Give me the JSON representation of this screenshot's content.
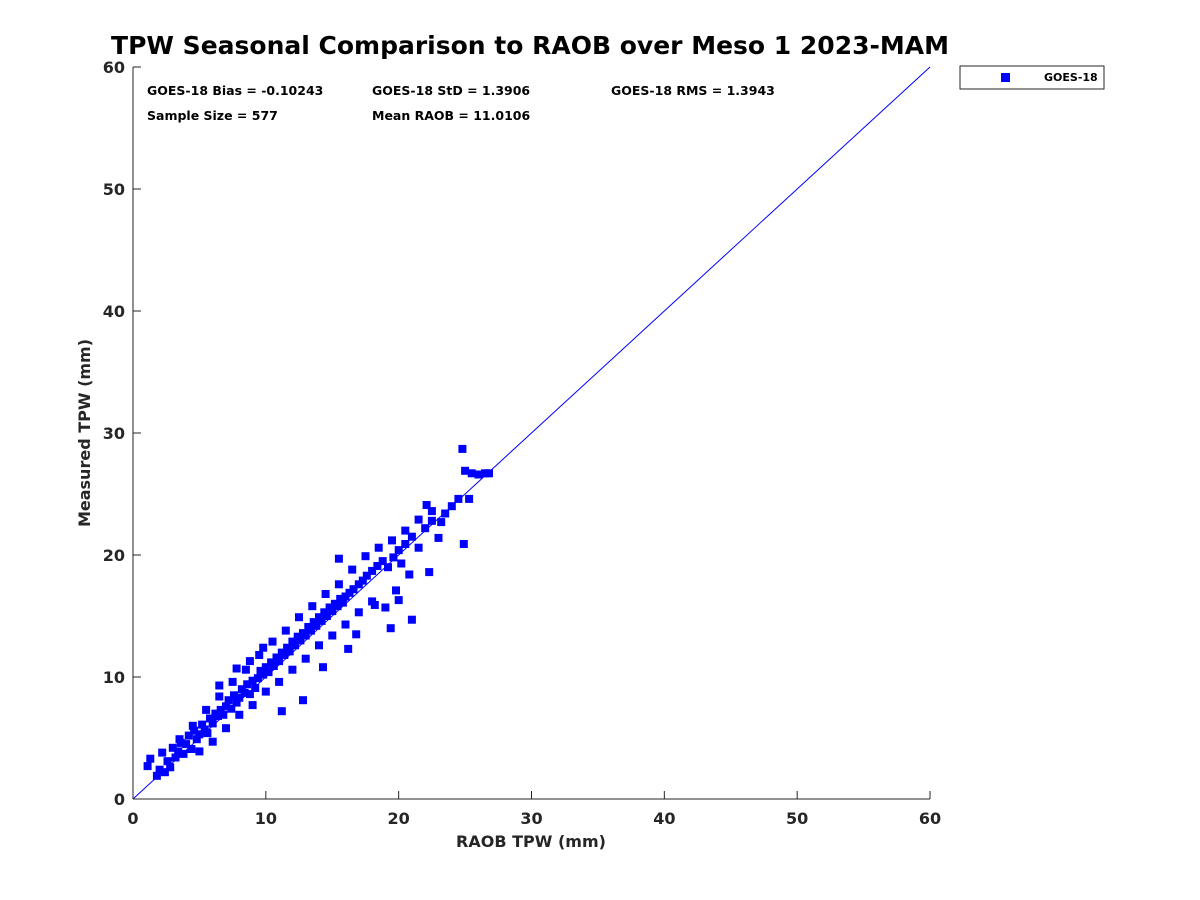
{
  "chart_data": {
    "type": "scatter",
    "title": "TPW Seasonal Comparison to RAOB over Meso 1 2023-MAM",
    "xlabel": "RAOB TPW (mm)",
    "ylabel": "Measured TPW (mm)",
    "xlim": [
      0,
      60
    ],
    "ylim": [
      0,
      60
    ],
    "xticks": [
      "0",
      "10",
      "20",
      "30",
      "40",
      "50",
      "60"
    ],
    "yticks": [
      "0",
      "10",
      "20",
      "30",
      "40",
      "50",
      "60"
    ],
    "grid": false,
    "legend_position": "outside-top-right",
    "reference_line": {
      "name": "1:1 line",
      "from": [
        0,
        0
      ],
      "to": [
        60,
        60
      ],
      "color": "#0000ff"
    },
    "stats": {
      "bias": "GOES-18 Bias = -0.10243",
      "std": "GOES-18 StD = 1.3906",
      "rms": "GOES-18 RMS = 1.3943",
      "sample_size": "Sample Size = 577",
      "mean_raob": "Mean RAOB = 11.0106"
    },
    "series": [
      {
        "name": "GOES-18",
        "color": "#0000ff",
        "marker": "square",
        "x": [
          1.1,
          1.3,
          1.8,
          2.0,
          2.2,
          2.4,
          2.6,
          2.8,
          3.0,
          3.2,
          3.4,
          3.6,
          3.8,
          4.0,
          4.2,
          4.4,
          4.6,
          4.8,
          5.0,
          5.2,
          5.4,
          5.6,
          5.8,
          6.0,
          6.2,
          6.4,
          6.6,
          6.8,
          7.0,
          7.2,
          7.4,
          7.6,
          7.8,
          8.0,
          8.2,
          8.4,
          8.6,
          8.8,
          9.0,
          9.2,
          9.4,
          9.6,
          9.8,
          10.0,
          10.2,
          10.4,
          10.6,
          10.8,
          11.0,
          11.2,
          11.4,
          11.6,
          11.8,
          12.0,
          12.2,
          12.4,
          12.6,
          12.8,
          13.0,
          13.2,
          13.4,
          13.6,
          13.8,
          14.0,
          14.2,
          14.4,
          14.6,
          14.8,
          15.0,
          15.2,
          15.4,
          15.6,
          15.8,
          16.0,
          16.3,
          16.6,
          17.0,
          17.3,
          17.6,
          18.0,
          18.4,
          18.8,
          19.2,
          19.6,
          20.0,
          20.5,
          21.0,
          21.5,
          22.0,
          22.5,
          23.0,
          23.5,
          24.0,
          24.5,
          25.0,
          25.5,
          26.0,
          26.5,
          26.8,
          3.5,
          4.5,
          5.5,
          6.5,
          7.5,
          8.5,
          9.5,
          10.5,
          11.5,
          12.5,
          13.5,
          14.5,
          15.5,
          16.5,
          17.5,
          18.5,
          19.5,
          20.5,
          21.5,
          22.5,
          23.2,
          24.8,
          25.3,
          15.5,
          16.8,
          18.2,
          19.8,
          20.8,
          22.3,
          5.0,
          6.0,
          7.0,
          8.0,
          9.0,
          10.0,
          11.0,
          12.0,
          13.0,
          14.0,
          15.0,
          16.0,
          17.0,
          18.0,
          19.0,
          20.0,
          21.0,
          6.5,
          7.8,
          8.8,
          9.8,
          11.2,
          12.8,
          14.3,
          16.2,
          19.4,
          20.2,
          22.1,
          24.9
        ],
        "y": [
          2.7,
          3.3,
          1.9,
          2.4,
          3.8,
          2.2,
          3.1,
          2.6,
          4.2,
          3.4,
          3.9,
          4.6,
          3.7,
          4.5,
          5.2,
          4.1,
          5.6,
          4.9,
          5.3,
          6.1,
          5.7,
          5.4,
          6.6,
          6.2,
          7.0,
          6.8,
          7.3,
          6.9,
          7.6,
          8.1,
          7.4,
          8.5,
          7.9,
          8.3,
          9.0,
          8.7,
          9.4,
          8.6,
          9.7,
          9.1,
          9.9,
          10.5,
          10.2,
          10.8,
          10.4,
          11.2,
          10.9,
          11.6,
          11.3,
          12.0,
          11.8,
          12.4,
          12.1,
          12.9,
          12.6,
          13.3,
          13.0,
          13.6,
          13.4,
          14.1,
          13.8,
          14.5,
          14.2,
          14.9,
          14.6,
          15.3,
          15.0,
          15.7,
          15.4,
          16.0,
          15.8,
          16.4,
          16.1,
          16.6,
          16.9,
          17.2,
          17.6,
          17.9,
          18.3,
          18.7,
          19.1,
          19.5,
          19.0,
          19.8,
          20.4,
          20.9,
          21.5,
          20.6,
          22.2,
          22.8,
          21.4,
          23.4,
          24.0,
          24.6,
          26.9,
          26.7,
          26.6,
          26.7,
          26.7,
          4.9,
          6.0,
          7.3,
          8.4,
          9.6,
          10.6,
          11.8,
          12.9,
          13.8,
          14.9,
          15.8,
          16.8,
          17.6,
          18.8,
          19.9,
          20.6,
          21.2,
          22.0,
          22.9,
          23.6,
          22.7,
          28.7,
          24.6,
          19.7,
          13.5,
          15.9,
          17.1,
          18.4,
          18.6,
          3.9,
          4.7,
          5.8,
          6.9,
          7.7,
          8.8,
          9.6,
          10.6,
          11.5,
          12.6,
          13.4,
          14.3,
          15.3,
          16.2,
          15.7,
          16.3,
          14.7,
          9.3,
          10.7,
          11.3,
          12.4,
          7.2,
          8.1,
          10.8,
          12.3,
          14.0,
          19.3,
          24.1,
          20.9
        ]
      }
    ]
  }
}
